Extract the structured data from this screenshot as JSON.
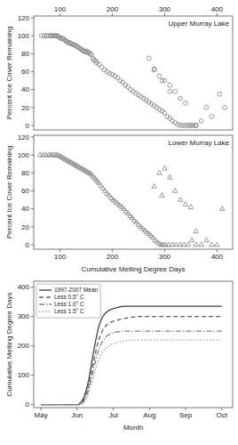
{
  "chart_data": [
    {
      "type": "scatter",
      "annotation": "Upper Murray Lake",
      "y_label": "Percent Ice Cover Remaining",
      "color": "#808080",
      "marker": "circle",
      "xlim": [
        50,
        430
      ],
      "xticks": [
        100,
        200,
        300,
        400
      ],
      "ylim": [
        -5,
        122
      ],
      "yticks": [
        0,
        20,
        40,
        60,
        80,
        100,
        120
      ],
      "x": [
        65,
        70,
        75,
        78,
        82,
        85,
        88,
        90,
        92,
        95,
        97,
        100,
        102,
        105,
        107,
        110,
        112,
        115,
        117,
        120,
        122,
        125,
        127,
        130,
        133,
        135,
        138,
        140,
        143,
        145,
        148,
        150,
        153,
        155,
        158,
        160,
        163,
        165,
        168,
        170,
        175,
        180,
        185,
        190,
        195,
        200,
        205,
        210,
        215,
        220,
        225,
        230,
        235,
        240,
        245,
        250,
        255,
        260,
        265,
        270,
        275,
        280,
        285,
        290,
        295,
        300,
        305,
        310,
        315,
        320,
        325,
        330,
        335,
        340,
        345,
        350,
        355,
        360,
        370,
        380,
        390,
        405,
        415,
        270,
        280,
        290,
        300,
        310,
        320,
        330,
        340,
        350,
        360,
        280,
        295,
        310
      ],
      "values": [
        100,
        100,
        100,
        100,
        100,
        100,
        100,
        100,
        100,
        100,
        99,
        98,
        97,
        97,
        96,
        95,
        94,
        93,
        92,
        92,
        91,
        90,
        90,
        89,
        88,
        87,
        86,
        85,
        84,
        83,
        82,
        83,
        82,
        81,
        80,
        79,
        75,
        73,
        72,
        70,
        68,
        65,
        62,
        60,
        58,
        57,
        55,
        53,
        50,
        48,
        45,
        43,
        40,
        38,
        36,
        34,
        32,
        30,
        28,
        26,
        24,
        22,
        20,
        18,
        16,
        14,
        10,
        8,
        5,
        3,
        1,
        0,
        0,
        0,
        0,
        0,
        0,
        0,
        5,
        20,
        10,
        35,
        20,
        75,
        63,
        55,
        50,
        45,
        38,
        30,
        25,
        0,
        0,
        62,
        50,
        38
      ]
    },
    {
      "type": "scatter",
      "annotation": "Lower Murray Lake",
      "y_label": "Percent Ice Cover Remaining",
      "x_label": "Cumulative Melting Degree Days",
      "color": "#808080",
      "marker": "triangle",
      "xlim": [
        50,
        430
      ],
      "xticks": [
        100,
        200,
        300,
        400
      ],
      "ylim": [
        -5,
        122
      ],
      "yticks": [
        0,
        20,
        40,
        60,
        80,
        100,
        120
      ],
      "x": [
        62,
        68,
        73,
        78,
        82,
        86,
        90,
        93,
        96,
        99,
        102,
        105,
        108,
        111,
        114,
        117,
        120,
        123,
        126,
        129,
        132,
        135,
        138,
        141,
        144,
        147,
        150,
        153,
        156,
        159,
        162,
        165,
        168,
        171,
        174,
        178,
        182,
        186,
        190,
        194,
        198,
        202,
        206,
        210,
        214,
        218,
        222,
        226,
        230,
        234,
        238,
        242,
        246,
        250,
        254,
        258,
        262,
        266,
        270,
        274,
        278,
        282,
        286,
        290,
        294,
        298,
        302,
        308,
        315,
        322,
        330,
        337,
        345,
        352,
        360,
        370,
        380,
        390,
        400,
        410,
        290,
        300,
        310,
        320,
        330,
        340,
        350,
        360,
        280,
        295
      ],
      "values": [
        100,
        100,
        100,
        100,
        100,
        100,
        100,
        100,
        100,
        99,
        98,
        97,
        96,
        95,
        94,
        93,
        92,
        91,
        90,
        89,
        88,
        87,
        86,
        85,
        84,
        83,
        82,
        81,
        80,
        79,
        77,
        75,
        73,
        71,
        69,
        66,
        63,
        60,
        57,
        55,
        52,
        50,
        48,
        46,
        44,
        42,
        40,
        37,
        35,
        32,
        30,
        27,
        25,
        22,
        20,
        18,
        16,
        14,
        12,
        10,
        8,
        5,
        3,
        1,
        0,
        0,
        0,
        0,
        0,
        0,
        0,
        0,
        0,
        5,
        15,
        0,
        5,
        0,
        0,
        40,
        80,
        85,
        75,
        60,
        50,
        45,
        42,
        0,
        65,
        55
      ]
    },
    {
      "type": "line",
      "y_label": "Cumulative Melting Degree Days",
      "x_label": "Month",
      "legend": "upper left",
      "xlim": [
        -0.2,
        5.3
      ],
      "xticks": [
        {
          "value": 0,
          "label": "May"
        },
        {
          "value": 1,
          "label": "Jun"
        },
        {
          "value": 2,
          "label": "Jul"
        },
        {
          "value": 3,
          "label": "Aug"
        },
        {
          "value": 4,
          "label": "Sep"
        },
        {
          "value": 5,
          "label": "Oct"
        }
      ],
      "ylim": [
        -10,
        420
      ],
      "yticks": [
        0,
        100,
        200,
        300,
        400
      ],
      "series": [
        {
          "name": "1997-2007 Mean",
          "color": "#404040",
          "line_style": "solid",
          "values": [
            0,
            0,
            0,
            0,
            0,
            0,
            0,
            0,
            0,
            0,
            0,
            0,
            0,
            0,
            0,
            0,
            0,
            0,
            0,
            0,
            0,
            0,
            0,
            0,
            0,
            0,
            0,
            0,
            0,
            0,
            0,
            0,
            0,
            0,
            0,
            0,
            0,
            1,
            3,
            6,
            10,
            15,
            22,
            30,
            40,
            52,
            65,
            80,
            98,
            118,
            138,
            158,
            178,
            198,
            216,
            232,
            248,
            262,
            274,
            284,
            292,
            299,
            304,
            308,
            312,
            315,
            318,
            320,
            322,
            324,
            325,
            326,
            327,
            328,
            329,
            330,
            331,
            332,
            333,
            333,
            334,
            334,
            335,
            335,
            335,
            335,
            335,
            335,
            335,
            335,
            335,
            335,
            335,
            335,
            335,
            335,
            335,
            335,
            335,
            335,
            335,
            335,
            335,
            335,
            335,
            335,
            335,
            335,
            335,
            335,
            335,
            335,
            335,
            335,
            335,
            335,
            335,
            335,
            335,
            335,
            335,
            335,
            335,
            335,
            335,
            335,
            335,
            335,
            335,
            335,
            335,
            335,
            335,
            335,
            335,
            335,
            335,
            335,
            335,
            335,
            335,
            335,
            335,
            335,
            335,
            335,
            335,
            335,
            335,
            335,
            335,
            335,
            335,
            335,
            335,
            335,
            335,
            335,
            335,
            335,
            335,
            335,
            335,
            335,
            335,
            335,
            335,
            335,
            335,
            335,
            335,
            335,
            335,
            335,
            335,
            335,
            335,
            335,
            335,
            335
          ]
        },
        {
          "name": "Less 0.5° C",
          "color": "#606060",
          "line_style": "dashed",
          "values": [
            0,
            0,
            0,
            0,
            0,
            0,
            0,
            0,
            0,
            0,
            0,
            0,
            0,
            0,
            0,
            0,
            0,
            0,
            0,
            0,
            0,
            0,
            0,
            0,
            0,
            0,
            0,
            0,
            0,
            0,
            0,
            0,
            0,
            0,
            0,
            0,
            0,
            0,
            1,
            3,
            6,
            10,
            15,
            22,
            30,
            40,
            52,
            65,
            79,
            94,
            110,
            127,
            144,
            161,
            177,
            192,
            206,
            218,
            229,
            238,
            246,
            252,
            258,
            263,
            267,
            271,
            274,
            276,
            278,
            280,
            282,
            283,
            284,
            285,
            286,
            287,
            288,
            289,
            290,
            291,
            292,
            292,
            293,
            294,
            294,
            295,
            296,
            296,
            297,
            297,
            298,
            298,
            299,
            299,
            300,
            300,
            300,
            300,
            300,
            300,
            300,
            300,
            300,
            300,
            300,
            300,
            300,
            300,
            300,
            300,
            300,
            300,
            300,
            300,
            300,
            300,
            300,
            300,
            300,
            300,
            300,
            300,
            300,
            300,
            300,
            300,
            300,
            300,
            300,
            300,
            300,
            300,
            300,
            300,
            300,
            300,
            300,
            300,
            300,
            300,
            300,
            300,
            300,
            300,
            300,
            300,
            300,
            300,
            300,
            300,
            300,
            300,
            300,
            300,
            300,
            300,
            300,
            300,
            300,
            300,
            300,
            300,
            300,
            300,
            300,
            300,
            300,
            300,
            300,
            300,
            300,
            300,
            300,
            300,
            300,
            300,
            300,
            300,
            300,
            300
          ]
        },
        {
          "name": "Less 1.0° C",
          "color": "#808080",
          "line_style": "dashdot",
          "values": [
            0,
            0,
            0,
            0,
            0,
            0,
            0,
            0,
            0,
            0,
            0,
            0,
            0,
            0,
            0,
            0,
            0,
            0,
            0,
            0,
            0,
            0,
            0,
            0,
            0,
            0,
            0,
            0,
            0,
            0,
            0,
            0,
            0,
            0,
            0,
            0,
            0,
            0,
            0,
            1,
            3,
            6,
            10,
            15,
            22,
            30,
            40,
            52,
            64,
            77,
            91,
            105,
            120,
            135,
            149,
            162,
            174,
            185,
            195,
            203,
            210,
            216,
            221,
            226,
            230,
            233,
            236,
            238,
            240,
            242,
            243,
            244,
            245,
            246,
            247,
            247,
            248,
            248,
            249,
            249,
            250,
            250,
            250,
            250,
            250,
            250,
            250,
            250,
            250,
            250,
            250,
            250,
            250,
            250,
            250,
            250,
            250,
            250,
            250,
            250,
            250,
            250,
            250,
            250,
            250,
            250,
            250,
            250,
            250,
            250,
            250,
            250,
            250,
            250,
            250,
            250,
            250,
            250,
            250,
            250,
            250,
            250,
            250,
            250,
            250,
            250,
            250,
            250,
            250,
            250,
            250,
            250,
            250,
            250,
            250,
            250,
            250,
            250,
            250,
            250,
            250,
            250,
            250,
            250,
            250,
            250,
            250,
            250,
            250,
            250,
            250,
            250,
            250,
            250,
            250,
            250,
            250,
            250,
            250,
            250,
            250,
            250,
            250,
            250,
            250,
            250,
            250,
            250,
            250,
            250,
            250,
            250,
            250,
            250,
            250,
            250,
            250,
            250,
            250,
            250
          ]
        },
        {
          "name": "Less 1.5° C",
          "color": "#a0a0a0",
          "line_style": "dotted",
          "values": [
            0,
            0,
            0,
            0,
            0,
            0,
            0,
            0,
            0,
            0,
            0,
            0,
            0,
            0,
            0,
            0,
            0,
            0,
            0,
            0,
            0,
            0,
            0,
            0,
            0,
            0,
            0,
            0,
            0,
            0,
            0,
            0,
            0,
            0,
            0,
            0,
            0,
            0,
            0,
            0,
            1,
            3,
            6,
            10,
            15,
            22,
            30,
            40,
            50,
            61,
            72,
            84,
            96,
            108,
            120,
            131,
            141,
            151,
            159,
            167,
            173,
            179,
            184,
            188,
            192,
            195,
            198,
            200,
            202,
            204,
            206,
            207,
            208,
            209,
            210,
            211,
            212,
            213,
            214,
            215,
            216,
            216,
            217,
            217,
            218,
            218,
            219,
            219,
            220,
            220,
            220,
            220,
            220,
            220,
            220,
            220,
            220,
            220,
            220,
            220,
            220,
            220,
            220,
            220,
            220,
            220,
            220,
            220,
            220,
            220,
            220,
            220,
            220,
            220,
            220,
            220,
            220,
            220,
            220,
            220,
            220,
            220,
            220,
            220,
            220,
            220,
            220,
            220,
            220,
            220,
            220,
            220,
            220,
            220,
            220,
            220,
            220,
            220,
            220,
            220,
            220,
            220,
            220,
            220,
            220,
            220,
            220,
            220,
            220,
            220,
            220,
            220,
            220,
            220,
            220,
            220,
            220,
            220,
            220,
            220,
            220,
            220,
            220,
            220,
            220,
            220,
            220,
            220,
            220,
            220,
            220,
            220,
            220,
            220,
            220,
            220,
            220,
            220,
            220,
            220
          ]
        }
      ]
    }
  ]
}
